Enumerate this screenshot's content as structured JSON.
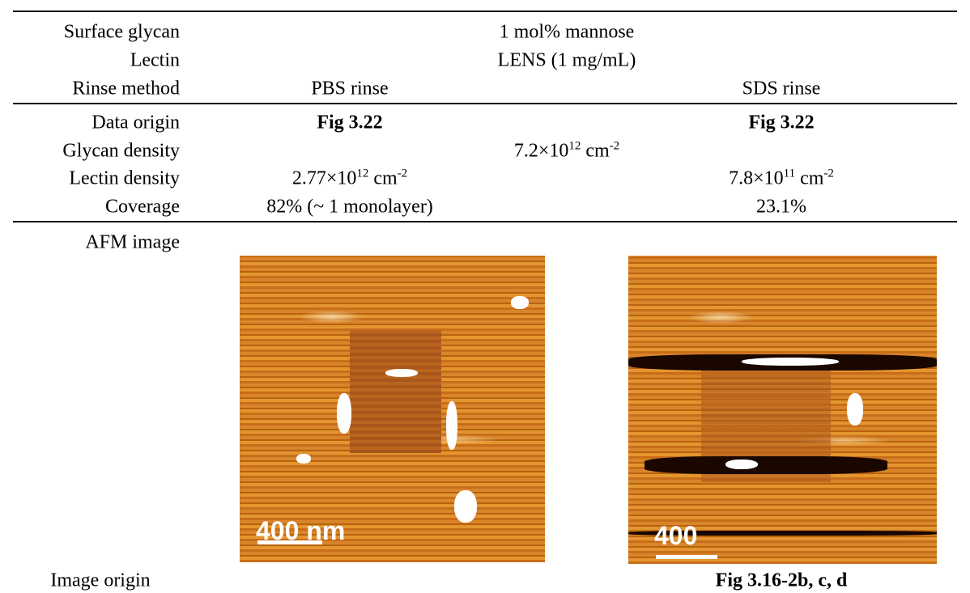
{
  "table": {
    "rows": [
      {
        "label": "Surface glycan",
        "both": "1 mol% mannose"
      },
      {
        "label": "Lectin",
        "both": "LENS (1 mg/mL)"
      },
      {
        "label": "Rinse method",
        "left": "PBS rinse",
        "right": "SDS rinse"
      },
      {
        "label": "Data origin",
        "left": "Fig 3.22",
        "right": "Fig 3.22"
      },
      {
        "label": "Glycan density",
        "both": {
          "base": "7.2×10",
          "exp": "12",
          "unit": "cm",
          "unit_exp": "-2"
        }
      },
      {
        "label": "Lectin density",
        "left": {
          "base": "2.77×10",
          "exp": "12",
          "unit": "cm",
          "unit_exp": "-2"
        },
        "right": {
          "base": "7.8×10",
          "exp": "11",
          "unit": "cm",
          "unit_exp": "-2"
        }
      },
      {
        "label": "Coverage",
        "left": "82% (~ 1 monolayer)",
        "right": "23.1%"
      },
      {
        "label": "AFM image",
        "left": {
          "scale_label": "400 nm"
        },
        "right": {
          "scale_label": "400"
        }
      },
      {
        "label": "Image origin",
        "right": "Fig 3.16-2b, c, d"
      }
    ]
  }
}
